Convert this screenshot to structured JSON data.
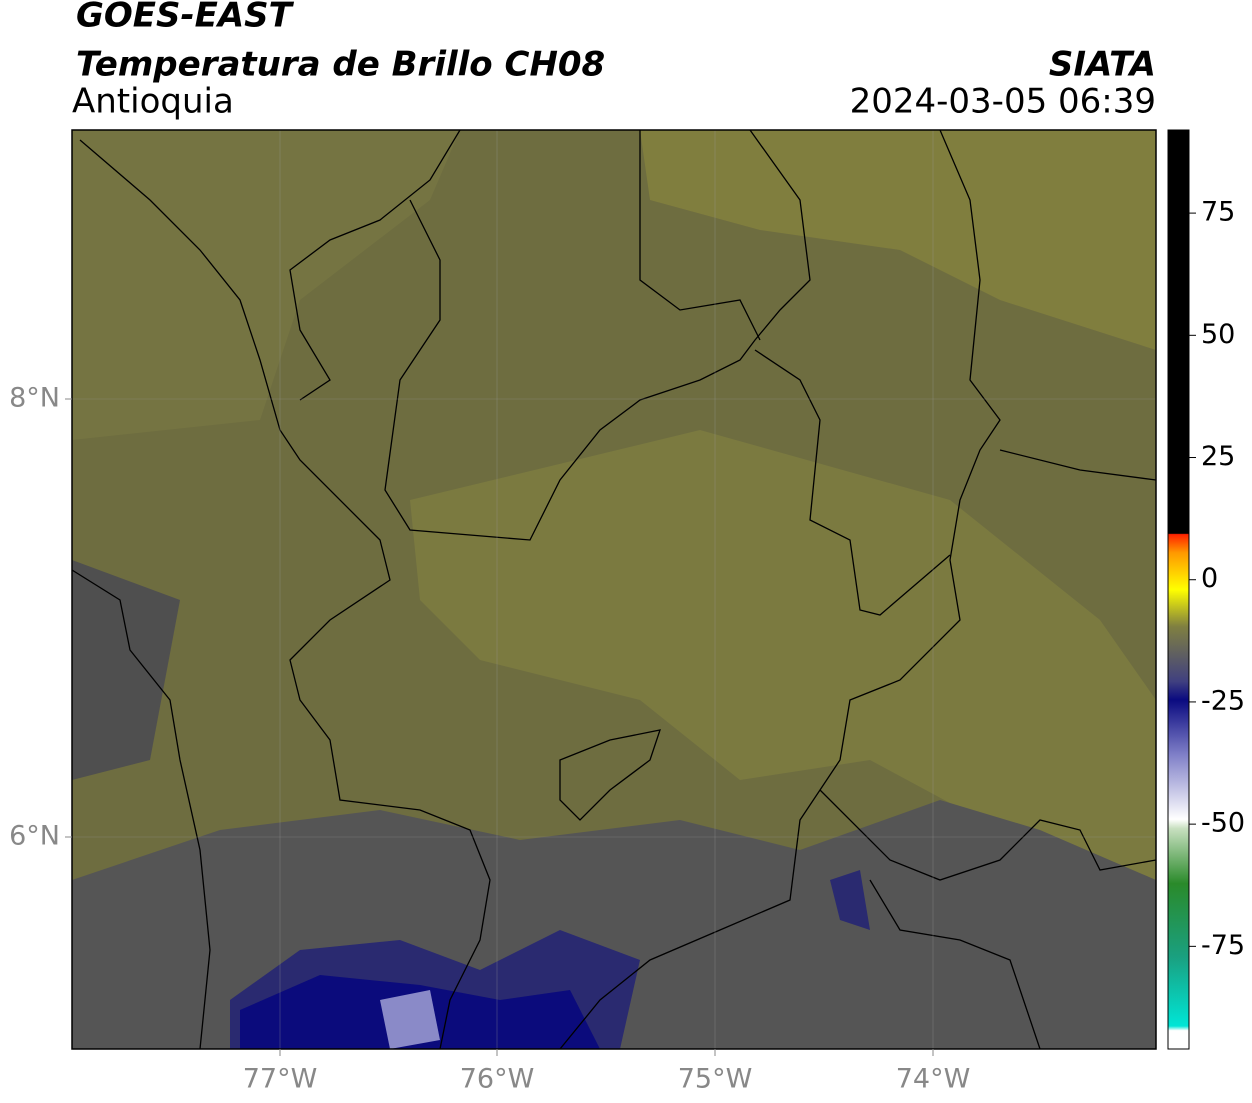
{
  "header": {
    "title": "GOES-EAST",
    "subtitle": "Temperatura de Brillo CH08",
    "region": "Antioquia",
    "source": "SIATA",
    "datetime": "2024-03-05 06:39"
  },
  "map": {
    "x_labels": [
      "77°W",
      "76°W",
      "75°W",
      "74°W"
    ],
    "y_labels": [
      "8°N",
      "6°N"
    ]
  },
  "colorbar": {
    "ylim": [
      -96,
      92
    ],
    "yticks": [
      75,
      50,
      25,
      0,
      -25,
      -50,
      -75
    ]
  }
}
